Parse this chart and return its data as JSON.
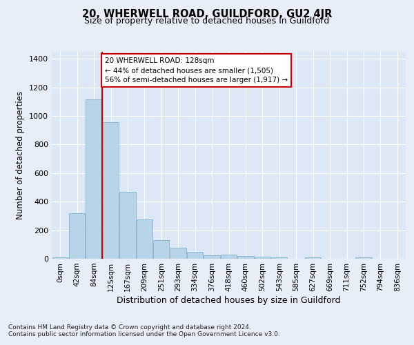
{
  "title": "20, WHERWELL ROAD, GUILDFORD, GU2 4JR",
  "subtitle": "Size of property relative to detached houses in Guildford",
  "xlabel": "Distribution of detached houses by size in Guildford",
  "ylabel": "Number of detached properties",
  "bar_labels": [
    "0sqm",
    "42sqm",
    "84sqm",
    "125sqm",
    "167sqm",
    "209sqm",
    "251sqm",
    "293sqm",
    "334sqm",
    "376sqm",
    "418sqm",
    "460sqm",
    "502sqm",
    "543sqm",
    "585sqm",
    "627sqm",
    "669sqm",
    "711sqm",
    "752sqm",
    "794sqm",
    "836sqm"
  ],
  "bar_values": [
    10,
    320,
    1115,
    955,
    470,
    275,
    130,
    75,
    48,
    25,
    28,
    20,
    15,
    10,
    0,
    10,
    0,
    0,
    10,
    0,
    0
  ],
  "bar_color": "#b8d4e8",
  "bar_edge_color": "#7aaac8",
  "ylim": [
    0,
    1450
  ],
  "yticks": [
    0,
    200,
    400,
    600,
    800,
    1000,
    1200,
    1400
  ],
  "property_bin_index": 3,
  "vline_color": "#cc0000",
  "annotation_text": "20 WHERWELL ROAD: 128sqm\n← 44% of detached houses are smaller (1,505)\n56% of semi-detached houses are larger (1,917) →",
  "annotation_box_color": "#ffffff",
  "annotation_box_edge": "#cc0000",
  "footer1": "Contains HM Land Registry data © Crown copyright and database right 2024.",
  "footer2": "Contains public sector information licensed under the Open Government Licence v3.0.",
  "fig_bg_color": "#e8eef8",
  "plot_bg_color": "#dce8f5"
}
